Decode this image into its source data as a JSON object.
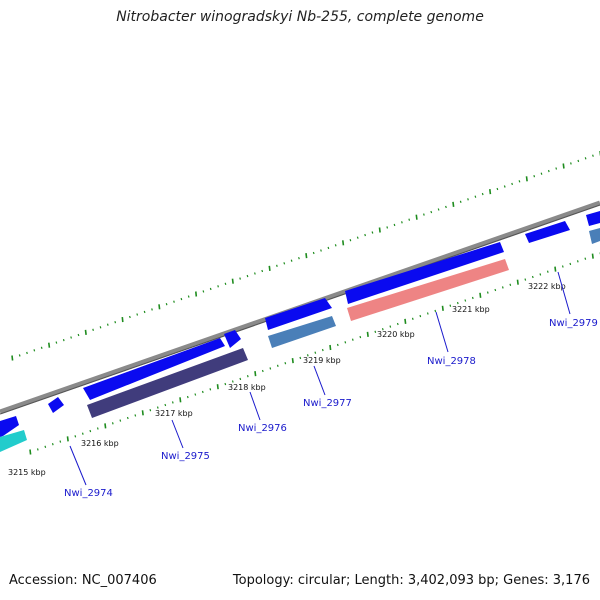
{
  "title": "Nitrobacter winogradskyi Nb-255, complete genome",
  "footer": {
    "accession": "Accession: NC_007406",
    "summary": "Topology: circular; Length: 3,402,093 bp; Genes: 3,176"
  },
  "ruler_labels": [
    "3215 kbp",
    "3216 kbp",
    "3217 kbp",
    "3218 kbp",
    "3219 kbp",
    "3220 kbp",
    "3221 kbp",
    "3222 kbp"
  ],
  "gene_labels": [
    "Nwi_2974",
    "Nwi_2975",
    "Nwi_2976",
    "Nwi_2977",
    "Nwi_2978",
    "Nwi_2979"
  ],
  "colors": {
    "backbone": "#8c8c8c",
    "cds": "#0a0af0",
    "tick": "#1e8c1e",
    "label": "#1a1acc",
    "feature_teal": "#22cccc",
    "feature_navy": "#403c7c",
    "feature_steel": "#4a7fb8",
    "feature_salmon": "#ee8484"
  }
}
